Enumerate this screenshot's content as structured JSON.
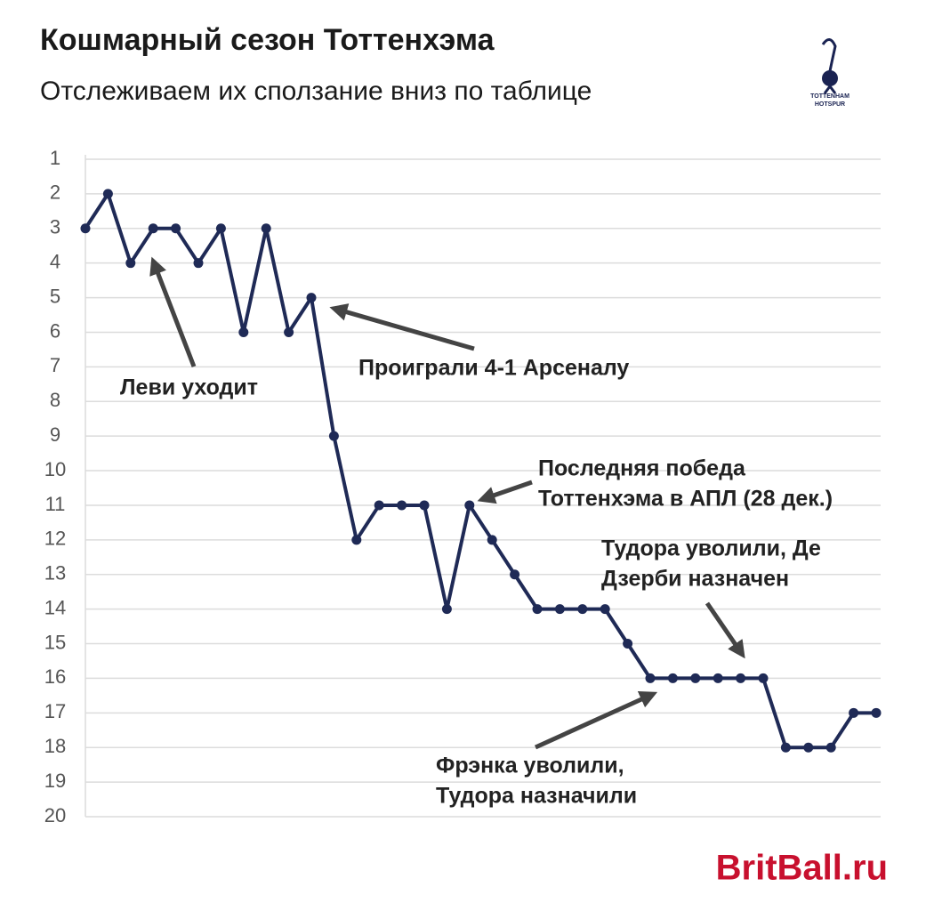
{
  "chart_data": {
    "type": "line",
    "title": "Кошмарный сезон Тоттенхэма",
    "subtitle": "Отслеживаем их сползание вниз по таблице",
    "logo_text": [
      "TOTTENHAM",
      "HOTSPUR"
    ],
    "watermark": "BritBall.ru",
    "ylim": [
      20,
      1
    ],
    "y_inverted": true,
    "yticks": [
      1,
      2,
      3,
      4,
      5,
      6,
      7,
      8,
      9,
      10,
      11,
      12,
      13,
      14,
      15,
      16,
      17,
      18,
      19,
      20
    ],
    "grid": true,
    "series": [
      {
        "color": "#1f2a56",
        "values": [
          3,
          2,
          4,
          3,
          3,
          4,
          3,
          6,
          3,
          6,
          5,
          9,
          12,
          11,
          11,
          11,
          14,
          11,
          12,
          13,
          14,
          14,
          14,
          14,
          15,
          16,
          16,
          16,
          16,
          16,
          16,
          18,
          18,
          18,
          17,
          17
        ]
      }
    ],
    "annotations": [
      {
        "lines": [
          "Леви уходит"
        ]
      },
      {
        "lines": [
          "Проиграли 4-1 Арсеналу"
        ]
      },
      {
        "lines": [
          "Последняя победа",
          "Тоттенхэма в АПЛ (28 дек.)"
        ]
      },
      {
        "lines": [
          "Тудора уволили, Де",
          "Дзерби назначен"
        ]
      },
      {
        "lines": [
          "Фрэнка уволили,",
          "Тудора назначили"
        ]
      }
    ]
  }
}
